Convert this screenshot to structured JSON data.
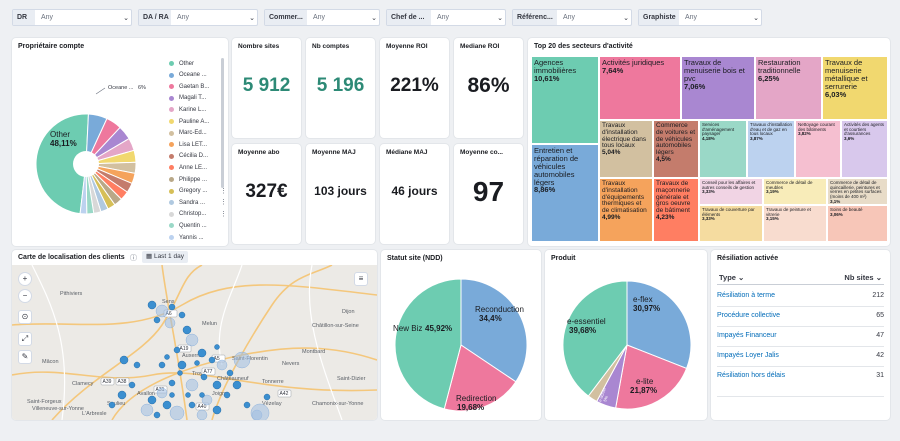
{
  "filters": [
    {
      "label": "DR",
      "value": "Any"
    },
    {
      "label": "DA / RA",
      "value": "Any"
    },
    {
      "label": "Commer...",
      "value": "Any"
    },
    {
      "label": "Chef de ...",
      "value": "Any"
    },
    {
      "label": "Référenc...",
      "value": "Any"
    },
    {
      "label": "Graphiste",
      "value": "Any"
    }
  ],
  "owner_chart": {
    "title": "Propriétaire compte",
    "other_label": "Other",
    "other_value": "48,11%",
    "callout_label": "Oceane ...",
    "callout_value": "6%",
    "legend": [
      {
        "name": "Other",
        "color": "#6dccb1"
      },
      {
        "name": "Oceane ...",
        "color": "#79aad9"
      },
      {
        "name": "Gaetan B...",
        "color": "#ee789d"
      },
      {
        "name": "Magali T...",
        "color": "#a987d1"
      },
      {
        "name": "Karine L...",
        "color": "#e4a6c7"
      },
      {
        "name": "Pauline A...",
        "color": "#f1d86f"
      },
      {
        "name": "Marc-Ed...",
        "color": "#d2c0a0"
      },
      {
        "name": "Lisa LET...",
        "color": "#f5a35c"
      },
      {
        "name": "Cécilia D...",
        "color": "#c47c6c"
      },
      {
        "name": "Anne LE...",
        "color": "#ff7e62"
      },
      {
        "name": "Philippe ...",
        "color": "#b9a888"
      },
      {
        "name": "Gregory ...",
        "color": "#d6bf57"
      },
      {
        "name": "Sandra ...",
        "color": "#b0c9e0"
      },
      {
        "name": "Christop...",
        "color": "#d8d8d8"
      },
      {
        "name": "Quentin ...",
        "color": "#9ad8c7"
      },
      {
        "name": "Yannis ...",
        "color": "#bcd2ef"
      }
    ],
    "slices": [
      48.11,
      6,
      5,
      4.5,
      4,
      3.8,
      3.5,
      3.3,
      3.1,
      2.9,
      2.7,
      2.5,
      2.4,
      2.3,
      2.2,
      2.1
    ]
  },
  "metrics": [
    {
      "label": "Nombre sites",
      "value": "5 912",
      "color": "#2d8a76"
    },
    {
      "label": "Nb comptes",
      "value": "5 196",
      "color": "#2d8a76"
    },
    {
      "label": "Moyenne ROI",
      "value": "221%",
      "color": "#1a1c21"
    },
    {
      "label": "Mediane ROI",
      "value": "86%",
      "color": "#1a1c21"
    },
    {
      "label": "Moyenne abo",
      "value": "327€",
      "color": "#1a1c21"
    },
    {
      "label": "Moyenne MAJ",
      "value": "103 jours",
      "color": "#1a1c21"
    },
    {
      "label": "Médiane MAJ",
      "value": "46 jours",
      "color": "#1a1c21"
    },
    {
      "label": "Moyenne co...",
      "value": "97",
      "color": "#1a1c21"
    }
  ],
  "treemap": {
    "title": "Top 20 des secteurs d'activité",
    "cells": [
      {
        "label": "Agences immobilières",
        "value": "10,61%",
        "color": "#6dccb1"
      },
      {
        "label": "Entretien et réparation de véhicules automobiles légers",
        "value": "8,86%",
        "color": "#79aad9"
      },
      {
        "label": "Activités juridiques",
        "value": "7,64%",
        "color": "#ee789d"
      },
      {
        "label": "Travaux de menuiserie bois et pvc",
        "value": "7,06%",
        "color": "#a987d1"
      },
      {
        "label": "Restauration traditionnelle",
        "value": "6,25%",
        "color": "#e4a6c7"
      },
      {
        "label": "Travaux de menuiserie métallique et serrurerie",
        "value": "6,03%",
        "color": "#f1d86f"
      },
      {
        "label": "Travaux d'installation électrique dans tous locaux",
        "value": "5,04%",
        "color": "#d2c0a0"
      },
      {
        "label": "Commerce de voitures et de véhicules automobiles légers",
        "value": "4,5%",
        "color": "#c47c6c"
      },
      {
        "label": "Travaux d'installation d'équipements thermiques et de climatisation",
        "value": "4,99%",
        "color": "#f5a35c"
      },
      {
        "label": "Travaux de maçonnerie générale et gros oeuvre de bâtiment",
        "value": "4,23%",
        "color": "#ff7e62"
      },
      {
        "label": "Services d'aménagement paysager",
        "value": "4,18%",
        "color": "#9ad8c7"
      },
      {
        "label": "Travaux d'installation d'eau et de gaz en tous locaux",
        "value": "3,87%",
        "color": "#bcd2ef"
      },
      {
        "label": "Nettoyage courant des bâtiments",
        "value": "3,82%",
        "color": "#f5bfd0"
      },
      {
        "label": "Activités des agents et courtiers d'assurances",
        "value": "3,6%",
        "color": "#d8c8ec"
      },
      {
        "label": "Conseil pour les affaires et autres conseils de gestion",
        "value": "3,33%",
        "color": "#f1d4e4"
      },
      {
        "label": "Commerce de détail de meubles",
        "value": "3,19%",
        "color": "#f8ecb9"
      },
      {
        "label": "Commerce de détail de quincaillerie, peintures et verres en petites surfaces (moins de 400 m²)",
        "value": "3,1%",
        "color": "#e8dcc8"
      },
      {
        "label": "Travaux de couverture par éléments",
        "value": "3,33%",
        "color": "#f5dca0"
      },
      {
        "label": "Travaux de peinture et vitrerie",
        "value": "3,15%",
        "color": "#f8dccf"
      },
      {
        "label": "Soins de beauté",
        "value": "3,06%",
        "color": "#f7c6b8"
      }
    ]
  },
  "map": {
    "title": "Carte de localisation des clients",
    "time_badge": "Last 1 day",
    "places": [
      "Sens",
      "Pithiviers",
      "Melun",
      "Auxerre",
      "Châtillon-sur-Seine",
      "Saint-Florentin",
      "Tonnerre",
      "Saint-Dizier",
      "Avallon",
      "Saulieu",
      "Clamecy",
      "Vézelay",
      "Mâcon",
      "Nevers",
      "Chamonix-sur-Yonne",
      "Villeneuve-sur-Yonne",
      "Montbard",
      "Joigny",
      "Châteauneuf",
      "Saint-Forgeux",
      "L'Arbresle",
      "Dijon",
      "Troyes"
    ],
    "roads": [
      "A6",
      "A19",
      "A77",
      "A38",
      "A31",
      "A5",
      "A39",
      "A42",
      "A40"
    ]
  },
  "statut": {
    "title": "Statut site (NDD)",
    "slices": [
      {
        "label": "Reconduction",
        "value": "34,4%",
        "pct": 34.4,
        "color": "#79aad9"
      },
      {
        "label": "Redirection",
        "value": "19,68%",
        "pct": 19.68,
        "color": "#ee789d"
      },
      {
        "label": "New Biz",
        "value": "45,92%",
        "pct": 45.92,
        "color": "#6dccb1"
      }
    ]
  },
  "produit": {
    "title": "Produit",
    "slices": [
      {
        "label": "e-flex",
        "value": "30,97%",
        "pct": 30.97,
        "color": "#79aad9"
      },
      {
        "label": "e-lite",
        "value": "21,87%",
        "pct": 21.87,
        "color": "#ee789d"
      },
      {
        "label": "e-actuel",
        "value": "5%",
        "pct": 5.0,
        "color": "#a987d1"
      },
      {
        "label": "",
        "value": "",
        "pct": 2.48,
        "color": "#d2c0a0"
      },
      {
        "label": "e-essentiel",
        "value": "39,68%",
        "pct": 39.68,
        "color": "#6dccb1"
      }
    ]
  },
  "resiliation": {
    "title": "Résiliation activée",
    "col_type": "Type",
    "col_count": "Nb sites",
    "rows": [
      {
        "type": "Résiliation à terme",
        "count": "212"
      },
      {
        "type": "Procédure collective",
        "count": "65"
      },
      {
        "type": "Impayés Financeur",
        "count": "47"
      },
      {
        "type": "Impayés Loyer Jalis",
        "count": "42"
      },
      {
        "type": "Résiliation hors délais",
        "count": "31"
      }
    ]
  }
}
